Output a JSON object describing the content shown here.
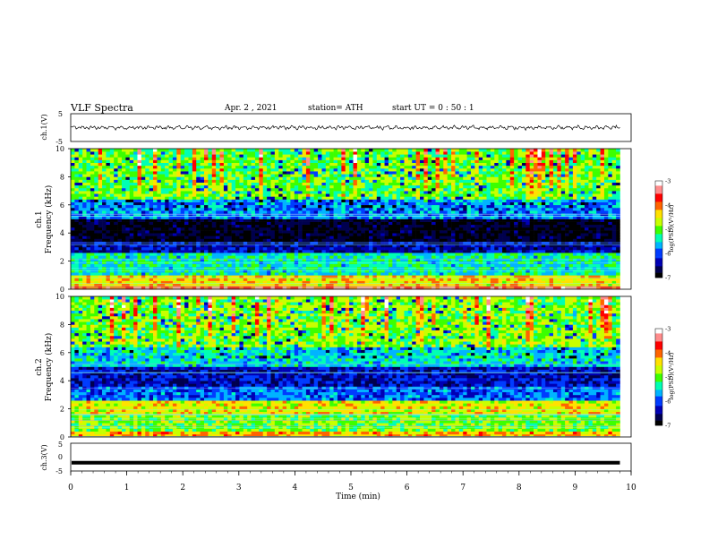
{
  "header": {
    "title": "VLF  Spectra",
    "date": "Apr. 2  , 2021",
    "station": "station= ATH",
    "start": "start  UT  =    0  : 50 : 1"
  },
  "chart_data": [
    {
      "type": "line",
      "name": "ch1-waveform",
      "ylabel": "ch.1(V)",
      "ylim": [
        -5,
        5
      ],
      "yticks": [
        "5",
        "-5"
      ],
      "xlim": [
        0,
        10
      ],
      "description_values": "noisy waveform near 0 V, amplitude about ±0.6 V, from t=0 to ~9.8 min"
    },
    {
      "type": "heatmap",
      "name": "ch1-spectrogram",
      "ylabel": "ch.1\nFrequency  (kHz)",
      "ylabel_lines": [
        "ch.1",
        "Frequency  (kHz)"
      ],
      "ylim": [
        0,
        10
      ],
      "yticks": [
        "0",
        "2",
        "4",
        "6",
        "8",
        "10"
      ],
      "xlim": [
        0,
        9.8
      ],
      "colorbar": {
        "label": "log(PSD)(V²/Hz)",
        "range": [
          -7,
          -3
        ],
        "ticks": [
          "-3",
          "-4",
          "-5",
          "-6",
          "-7"
        ]
      },
      "bands": [
        {
          "f_lo": 0.0,
          "f_hi": 0.3,
          "level": -3.6
        },
        {
          "f_lo": 0.3,
          "f_hi": 1.0,
          "level": -4.4
        },
        {
          "f_lo": 1.0,
          "f_hi": 2.6,
          "level": -5.4
        },
        {
          "f_lo": 2.6,
          "f_hi": 3.5,
          "level": -6.4
        },
        {
          "f_lo": 3.5,
          "f_hi": 5.0,
          "level": -6.9
        },
        {
          "f_lo": 5.0,
          "f_hi": 6.5,
          "level": -5.8
        },
        {
          "f_lo": 6.5,
          "f_hi": 10.0,
          "level": -5.0
        }
      ]
    },
    {
      "type": "heatmap",
      "name": "ch2-spectrogram",
      "ylabel": "ch.2\nFrequency  (kHz)",
      "ylabel_lines": [
        "ch.2",
        "Frequency  (kHz)"
      ],
      "ylim": [
        0,
        10
      ],
      "yticks": [
        "0",
        "2",
        "4",
        "6",
        "8",
        "10"
      ],
      "xlim": [
        0,
        9.8
      ],
      "colorbar": {
        "label": "log(PSD)(V²/Hz)",
        "range": [
          -7,
          -3
        ],
        "ticks": [
          "-3",
          "-4",
          "-5",
          "-6",
          "-7"
        ]
      },
      "bands": [
        {
          "f_lo": 0.0,
          "f_hi": 0.4,
          "level": -4.2
        },
        {
          "f_lo": 0.4,
          "f_hi": 1.6,
          "level": -4.9
        },
        {
          "f_lo": 1.6,
          "f_hi": 2.6,
          "level": -4.5
        },
        {
          "f_lo": 2.6,
          "f_hi": 3.7,
          "level": -5.9
        },
        {
          "f_lo": 3.7,
          "f_hi": 5.0,
          "level": -6.3
        },
        {
          "f_lo": 5.0,
          "f_hi": 6.5,
          "level": -5.5
        },
        {
          "f_lo": 6.5,
          "f_hi": 10.0,
          "level": -4.9
        }
      ]
    },
    {
      "type": "line",
      "name": "ch3-waveform",
      "ylabel": "ch.3(V)",
      "ylim": [
        -5,
        5
      ],
      "yticks": [
        "5",
        "0",
        "-5"
      ],
      "xlim": [
        0,
        10
      ],
      "value": -2.0
    }
  ],
  "x_axis": {
    "label": "Time  (min)",
    "ticks": [
      "0",
      "1",
      "2",
      "3",
      "4",
      "5",
      "6",
      "7",
      "8",
      "9",
      "10"
    ],
    "range": [
      0,
      10
    ]
  },
  "colors": {
    "scale": [
      "#000000",
      "#00004e",
      "#0000b4",
      "#003cff",
      "#00b4ff",
      "#00ffb4",
      "#3cff00",
      "#c8ff00",
      "#ffe100",
      "#ff6400",
      "#ff0000",
      "#ff8c8c",
      "#ffffff"
    ]
  }
}
